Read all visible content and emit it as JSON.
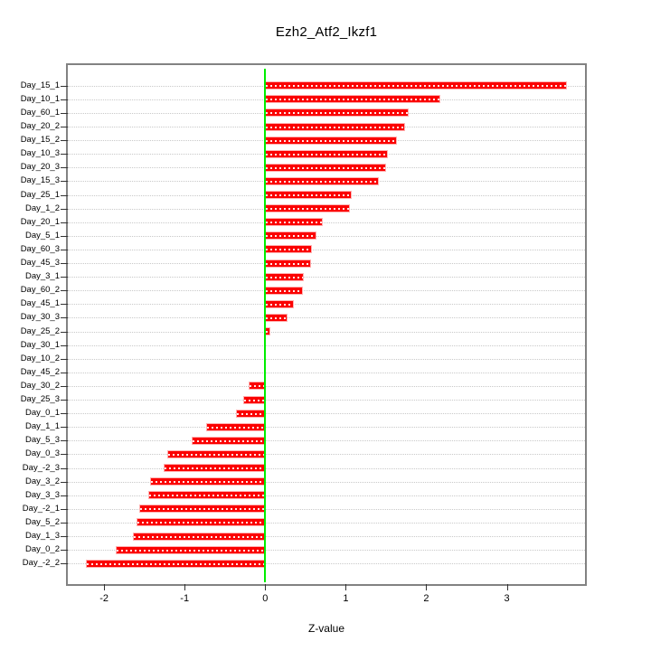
{
  "title": "Ezh2_Atf2_Ikzf1",
  "chart_data": {
    "type": "bar",
    "orientation": "horizontal",
    "title": "Ezh2_Atf2_Ikzf1",
    "xlabel": "Z-value",
    "ylabel": "",
    "categories": [
      "Day_15_1",
      "Day_10_1",
      "Day_60_1",
      "Day_20_2",
      "Day_15_2",
      "Day_10_3",
      "Day_20_3",
      "Day_15_3",
      "Day_25_1",
      "Day_1_2",
      "Day_20_1",
      "Day_5_1",
      "Day_60_3",
      "Day_45_3",
      "Day_3_1",
      "Day_60_2",
      "Day_45_1",
      "Day_30_3",
      "Day_25_2",
      "Day_30_1",
      "Day_10_2",
      "Day_45_2",
      "Day_30_2",
      "Day_25_3",
      "Day_0_1",
      "Day_1_1",
      "Day_5_3",
      "Day_0_3",
      "Day_-2_3",
      "Day_3_2",
      "Day_3_3",
      "Day_-2_1",
      "Day_5_2",
      "Day_1_3",
      "Day_0_2",
      "Day_-2_2"
    ],
    "values": [
      3.74,
      2.17,
      1.78,
      1.74,
      1.64,
      1.52,
      1.5,
      1.41,
      1.07,
      1.05,
      0.71,
      0.64,
      0.58,
      0.57,
      0.48,
      0.47,
      0.36,
      0.28,
      0.06,
      0.0,
      -0.01,
      -0.01,
      -0.21,
      -0.27,
      -0.36,
      -0.73,
      -0.91,
      -1.21,
      -1.26,
      -1.43,
      -1.45,
      -1.56,
      -1.6,
      -1.64,
      -1.86,
      -2.22
    ],
    "xlim": [
      -2.45,
      3.97
    ],
    "xticks": [
      -2,
      -1,
      0,
      1,
      2,
      3
    ],
    "xtick_labels": [
      "-2",
      "-1",
      "0",
      "1",
      "2",
      "3"
    ],
    "grid": "horizontal dotted line per category",
    "legend": null,
    "zero_line_value": 0,
    "colors": {
      "bar_fill": "#fb0000",
      "bar_border": "#ffb0b0",
      "bar_inner_dash": "#ffffff",
      "zero_line": "#00ee00",
      "gridline": "#c9c9c9",
      "plot_box_border": "#828282",
      "axis_tick": "#333333",
      "text": "#000000",
      "background": "#ffffff"
    }
  }
}
